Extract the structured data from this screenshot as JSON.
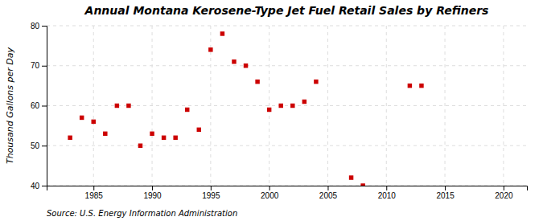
{
  "chart_data": {
    "type": "scatter",
    "title": "Annual Montana Kerosene-Type Jet Fuel Retail Sales by Refiners",
    "ylabel": "Thousand Gallons per Day",
    "source": "Source: U.S. Energy Information Administration",
    "x": [
      1983,
      1984,
      1985,
      1986,
      1987,
      1988,
      1989,
      1990,
      1991,
      1992,
      1993,
      1994,
      1995,
      1996,
      1997,
      1998,
      1999,
      2000,
      2001,
      2002,
      2003,
      2004,
      2007,
      2008,
      2012,
      2013
    ],
    "values": [
      52,
      57,
      56,
      53,
      60,
      60,
      50,
      53,
      52,
      52,
      59,
      54,
      74,
      78,
      71,
      70,
      66,
      59,
      60,
      60,
      61,
      66,
      42,
      40,
      65,
      65
    ],
    "color": "#cc0000",
    "marker": "square",
    "xlim": [
      1981,
      2022
    ],
    "ylim": [
      40,
      80
    ],
    "xticks": [
      1985,
      1990,
      1995,
      2000,
      2005,
      2010,
      2015,
      2020
    ],
    "yticks": [
      40,
      50,
      60,
      70,
      80
    ],
    "grid": true
  }
}
